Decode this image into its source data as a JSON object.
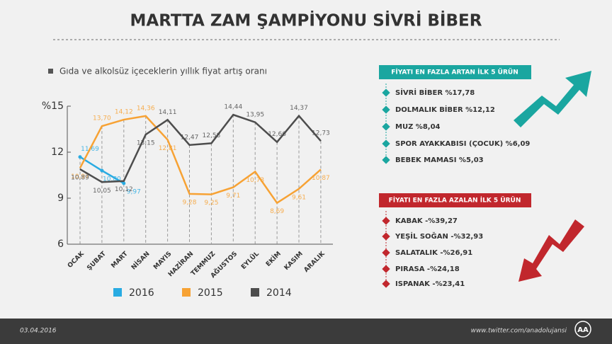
{
  "chart_data": {
    "type": "line",
    "title": "MARTTA ZAM ŞAMPİYONU SİVRİ BİBER",
    "subtitle": "Gıda ve alkolsüz içeceklerin yıllık fiyat artış oranı",
    "categories": [
      "OCAK",
      "ŞUBAT",
      "MART",
      "NİSAN",
      "MAYIS",
      "HAZİRAN",
      "TEMMUZ",
      "AĞUSTOS",
      "EYLÜL",
      "EKİM",
      "KASIM",
      "ARALIK"
    ],
    "series": [
      {
        "name": "2016",
        "color": "#29abe2",
        "values": [
          11.69,
          10.8,
          9.97,
          null,
          null,
          null,
          null,
          null,
          null,
          null,
          null,
          null
        ],
        "value_labels": [
          "11,69",
          "10,80",
          "9,97",
          null,
          null,
          null,
          null,
          null,
          null,
          null,
          null,
          null
        ]
      },
      {
        "name": "2015",
        "color": "#f7a234",
        "values": [
          10.97,
          13.7,
          14.12,
          14.36,
          12.81,
          9.28,
          9.25,
          9.71,
          10.73,
          8.69,
          9.61,
          10.87
        ],
        "value_labels": [
          "10,97",
          "13,70",
          "14,12",
          "14,36",
          "12,81",
          "9,28",
          "9,25",
          "9,71",
          "10,73",
          "8,69",
          "9,61",
          "10,87"
        ]
      },
      {
        "name": "2014",
        "color": "#4d4d4d",
        "values": [
          10.89,
          10.05,
          10.12,
          13.15,
          14.11,
          12.47,
          12.58,
          14.44,
          13.95,
          12.66,
          14.37,
          12.73
        ],
        "value_labels": [
          "10,89",
          "10,05",
          "10,12",
          "13,15",
          "14,11",
          "12,47",
          "12,58",
          "14,44",
          "13,95",
          "12,66",
          "14,37",
          "12,73"
        ]
      }
    ],
    "ylim": [
      6,
      15
    ],
    "yticks": [
      {
        "value": 15,
        "label": "%15"
      },
      12,
      9,
      6
    ]
  },
  "rising": {
    "title": "FİYATI EN FAZLA ARTAN İLK 5 ÜRÜN",
    "items": [
      "SİVRİ BİBER %17,78",
      "DOLMALIK BİBER %12,12",
      "MUZ %8,04",
      "SPOR AYAKKABISI (ÇOCUK)  %6,09",
      "BEBEK MAMASI %5,03"
    ]
  },
  "falling": {
    "title": "FİYATI EN FAZLA AZALAN İLK 5 ÜRÜN",
    "items": [
      "KABAK -%39,27",
      "YEŞİL SOĞAN -%32,93",
      "SALATALIK -%26,91",
      "PIRASA -%24,18",
      "ISPANAK -%23,41"
    ]
  },
  "footer": {
    "date": "03.04.2016",
    "link": "www.twitter.com/anadolujansi",
    "logo": "AA"
  }
}
